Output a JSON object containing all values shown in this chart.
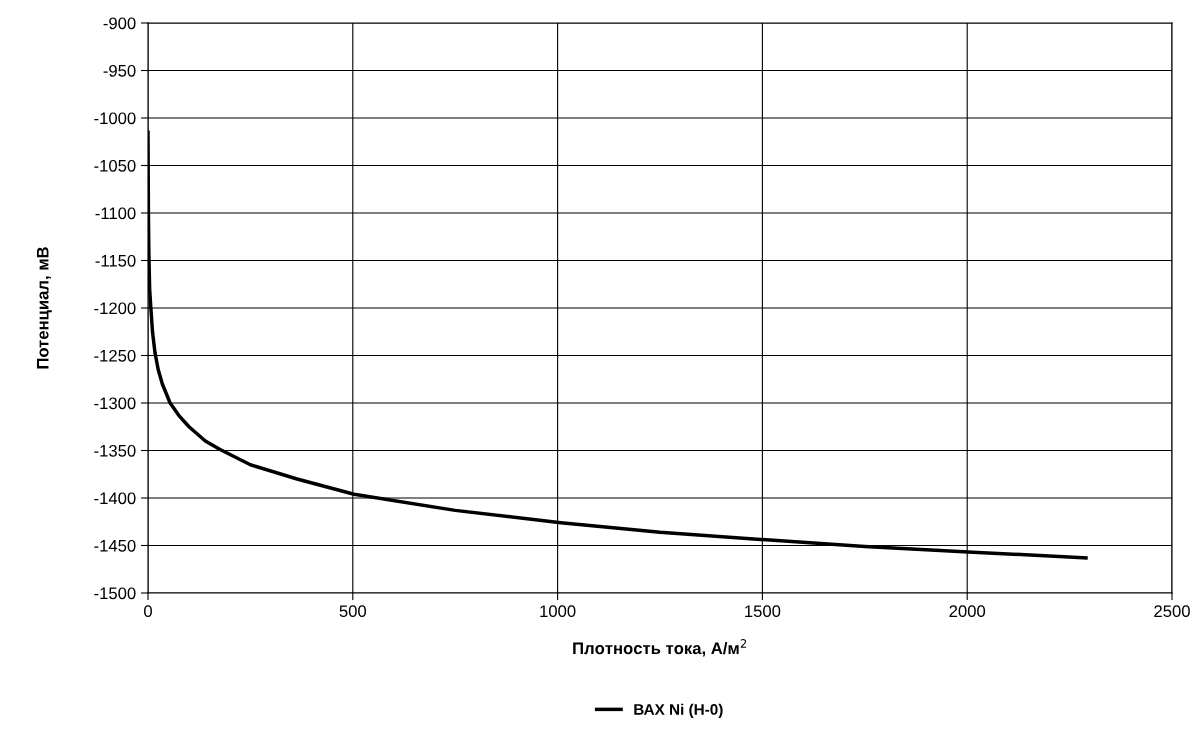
{
  "chart_data": {
    "type": "line",
    "xlabel": "Плотность тока, А/м$^{2}$",
    "ylabel": "Потенциал, мВ",
    "series": [
      {
        "name": "ВАХ Ni (H-0)",
        "color": "#000000",
        "x": [
          0,
          1,
          2,
          4,
          7,
          11,
          17,
          25,
          35,
          54,
          75,
          100,
          140,
          176,
          250,
          364,
          503,
          750,
          1008,
          1250,
          1509,
          1750,
          2014,
          2290
        ],
        "values": [
          -1015,
          -1100,
          -1140,
          -1180,
          -1200,
          -1225,
          -1247,
          -1265,
          -1280,
          -1300,
          -1313,
          -1325,
          -1340,
          -1349,
          -1365,
          -1380,
          -1396,
          -1413,
          -1426,
          -1436,
          -1444,
          -1451,
          -1457,
          -1463
        ]
      }
    ],
    "xlim": [
      0,
      2500
    ],
    "xticks": [
      0,
      500,
      1000,
      1500,
      2000,
      2500
    ],
    "ylim": [
      -1500,
      -900
    ],
    "yticks": [
      -1500,
      -1450,
      -1400,
      -1350,
      -1300,
      -1250,
      -1200,
      -1150,
      -1100,
      -1050,
      -1000,
      -950,
      -900
    ],
    "grid": true,
    "legend": "bottom",
    "marker": "none",
    "line_style": "solid"
  }
}
